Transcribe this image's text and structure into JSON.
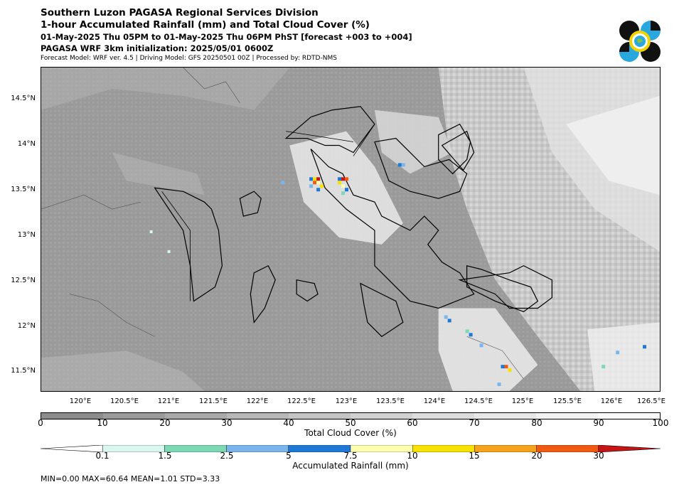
{
  "header": {
    "line1": "Southern Luzon PAGASA Regional Services Division",
    "line2": "1-hour Accumulated Rainfall (mm) and Total Cloud Cover (%)",
    "line3": "01-May-2025 Thu 05PM to 01-May-2025 Thu 06PM PhST [forecast +003 to +004]",
    "line4": "PAGASA WRF 3km initialization: 2025/05/01 0600Z",
    "line5": "Forecast Model: WRF ver. 4.5 | Driving Model: GFS 20250501 00Z | Processed by: RDTD-NMS"
  },
  "map": {
    "lat_labels": [
      "14.5°N",
      "14°N",
      "13.5°N",
      "13°N",
      "12.5°N",
      "12°N",
      "11.5°N"
    ],
    "lon_labels": [
      "120°E",
      "120.5°E",
      "121°E",
      "121.5°E",
      "122°E",
      "122.5°E",
      "123°E",
      "123.5°E",
      "124°E",
      "124.5°E",
      "125°E",
      "125.5°E",
      "126°E",
      "126.5°E"
    ]
  },
  "cloud_cover_bar": {
    "title": "Total Cloud Cover (%)",
    "ticks": [
      "0",
      "10",
      "20",
      "30",
      "40",
      "50",
      "60",
      "70",
      "80",
      "90",
      "100"
    ],
    "colors": [
      "#8c8c8c",
      "#9b9b9b",
      "#a9a9a9",
      "#b7b7b7",
      "#c4c4c4",
      "#d1d1d1",
      "#dddddd",
      "#e8e8e8",
      "#f2f2f2",
      "#fafafa"
    ]
  },
  "rain_bar": {
    "title": "Accumulated Rainfall (mm)",
    "ticks": [
      "0.1",
      "1.5",
      "2.5",
      "5",
      "7.5",
      "10",
      "15",
      "20",
      "30"
    ],
    "colors": [
      "#d9f7ef",
      "#7fd8b4",
      "#7ab6ec",
      "#1f78d6",
      "#ffffb0",
      "#f7e200",
      "#f5a31c",
      "#f05a13",
      "#c81414"
    ]
  },
  "stats": "MIN=0.00   MAX=60.64   MEAN=1.01   STD=3.33"
}
